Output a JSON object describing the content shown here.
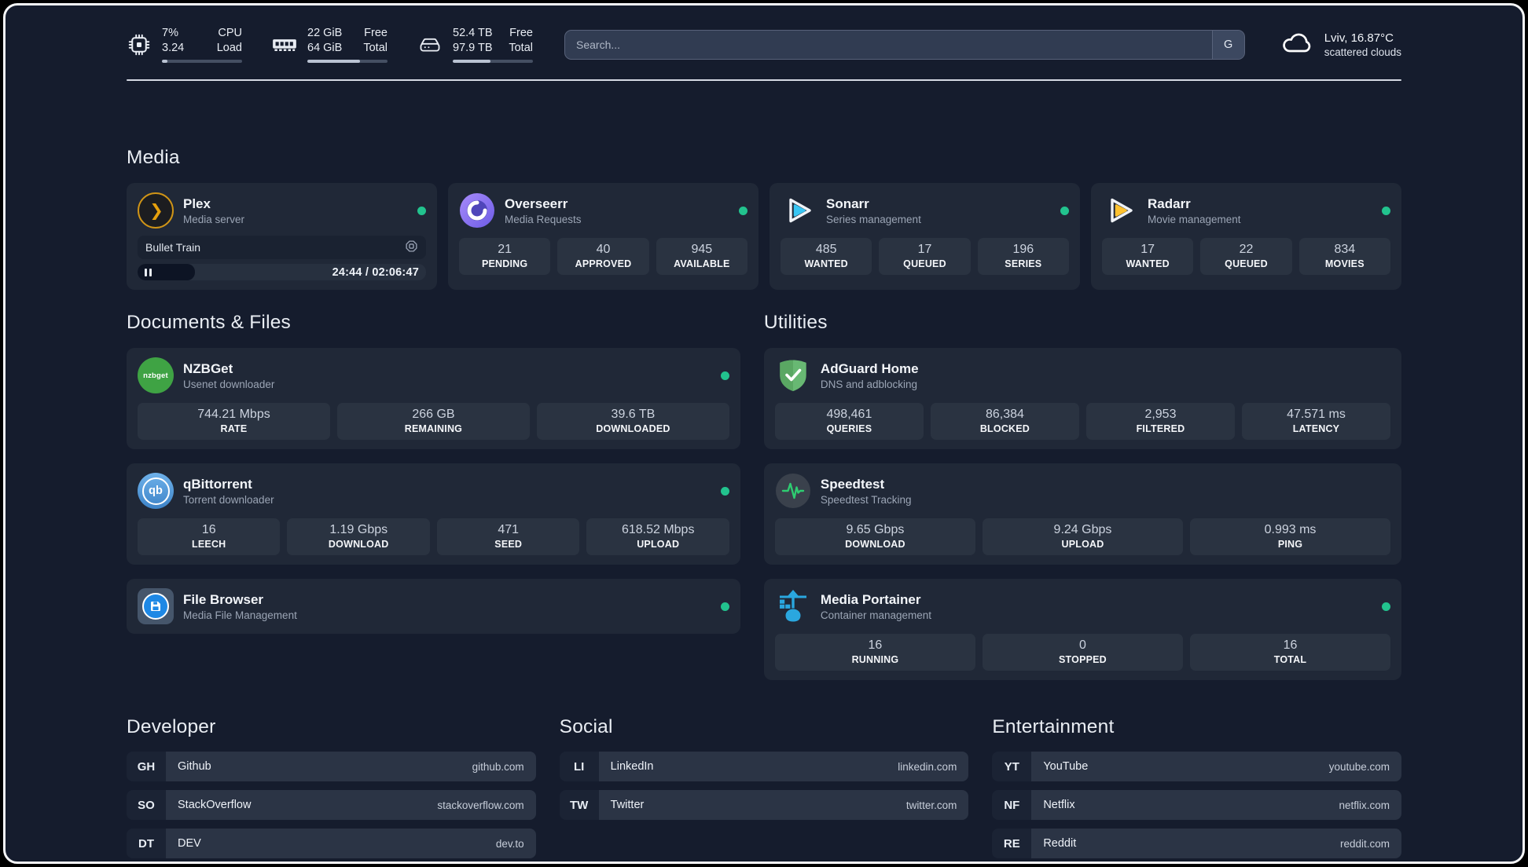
{
  "topbar": {
    "cpu": {
      "icon": "cpu-chip-icon",
      "value1": "7%",
      "value2": "3.24",
      "label1": "CPU",
      "label2": "Load",
      "progress_percent": 7
    },
    "memory": {
      "icon": "ram-icon",
      "value1": "22 GiB",
      "value2": "64 GiB",
      "label1": "Free",
      "label2": "Total",
      "progress_percent": 66
    },
    "disk": {
      "icon": "disk-icon",
      "value1": "52.4 TB",
      "value2": "97.9 TB",
      "label1": "Free",
      "label2": "Total",
      "progress_percent": 47
    },
    "search": {
      "placeholder": "Search...",
      "provider_label": "G"
    },
    "weather": {
      "icon": "cloud-icon",
      "location": "Lviv, 16.87°C",
      "condition": "scattered clouds"
    }
  },
  "media": {
    "title": "Media",
    "apps": {
      "plex": {
        "name": "Plex",
        "description": "Media server",
        "status": "online",
        "now_playing": {
          "title": "Bullet Train",
          "time": "24:44 / 02:06:47",
          "progress_percent": 20
        }
      },
      "overseerr": {
        "name": "Overseerr",
        "description": "Media Requests",
        "status": "online",
        "stats": [
          {
            "value": "21",
            "label": "PENDING"
          },
          {
            "value": "40",
            "label": "APPROVED"
          },
          {
            "value": "945",
            "label": "AVAILABLE"
          }
        ]
      },
      "sonarr": {
        "name": "Sonarr",
        "description": "Series management",
        "status": "online",
        "stats": [
          {
            "value": "485",
            "label": "WANTED"
          },
          {
            "value": "17",
            "label": "QUEUED"
          },
          {
            "value": "196",
            "label": "SERIES"
          }
        ]
      },
      "radarr": {
        "name": "Radarr",
        "description": "Movie management",
        "status": "online",
        "stats": [
          {
            "value": "17",
            "label": "WANTED"
          },
          {
            "value": "22",
            "label": "QUEUED"
          },
          {
            "value": "834",
            "label": "MOVIES"
          }
        ]
      }
    }
  },
  "documents": {
    "title": "Documents & Files",
    "apps": {
      "nzbget": {
        "name": "NZBGet",
        "description": "Usenet downloader",
        "status": "online",
        "icon_text": "nzbget",
        "stats": [
          {
            "value": "744.21 Mbps",
            "label": "RATE"
          },
          {
            "value": "266 GB",
            "label": "REMAINING"
          },
          {
            "value": "39.6 TB",
            "label": "DOWNLOADED"
          }
        ]
      },
      "qbittorrent": {
        "name": "qBittorrent",
        "description": "Torrent downloader",
        "status": "online",
        "icon_text": "qb",
        "stats": [
          {
            "value": "16",
            "label": "LEECH"
          },
          {
            "value": "1.19 Gbps",
            "label": "DOWNLOAD"
          },
          {
            "value": "471",
            "label": "SEED"
          },
          {
            "value": "618.52 Mbps",
            "label": "UPLOAD"
          }
        ]
      },
      "filebrowser": {
        "name": "File Browser",
        "description": "Media File Management",
        "status": "online"
      }
    }
  },
  "utilities": {
    "title": "Utilities",
    "apps": {
      "adguard": {
        "name": "AdGuard Home",
        "description": "DNS and adblocking",
        "stats": [
          {
            "value": "498,461",
            "label": "QUERIES"
          },
          {
            "value": "86,384",
            "label": "BLOCKED"
          },
          {
            "value": "2,953",
            "label": "FILTERED"
          },
          {
            "value": "47.571 ms",
            "label": "LATENCY"
          }
        ]
      },
      "speedtest": {
        "name": "Speedtest",
        "description": "Speedtest Tracking",
        "stats": [
          {
            "value": "9.65 Gbps",
            "label": "DOWNLOAD"
          },
          {
            "value": "9.24 Gbps",
            "label": "UPLOAD"
          },
          {
            "value": "0.993 ms",
            "label": "PING"
          }
        ]
      },
      "portainer": {
        "name": "Media Portainer",
        "description": "Container management",
        "status": "online",
        "stats": [
          {
            "value": "16",
            "label": "RUNNING"
          },
          {
            "value": "0",
            "label": "STOPPED"
          },
          {
            "value": "16",
            "label": "TOTAL"
          }
        ]
      }
    }
  },
  "bookmarks": {
    "developer": {
      "title": "Developer",
      "items": [
        {
          "abbr": "GH",
          "name": "Github",
          "url": "github.com"
        },
        {
          "abbr": "SO",
          "name": "StackOverflow",
          "url": "stackoverflow.com"
        },
        {
          "abbr": "DT",
          "name": "DEV",
          "url": "dev.to"
        }
      ]
    },
    "social": {
      "title": "Social",
      "items": [
        {
          "abbr": "LI",
          "name": "LinkedIn",
          "url": "linkedin.com"
        },
        {
          "abbr": "TW",
          "name": "Twitter",
          "url": "twitter.com"
        }
      ]
    },
    "entertainment": {
      "title": "Entertainment",
      "items": [
        {
          "abbr": "YT",
          "name": "YouTube",
          "url": "youtube.com"
        },
        {
          "abbr": "NF",
          "name": "Netflix",
          "url": "netflix.com"
        },
        {
          "abbr": "RE",
          "name": "Reddit",
          "url": "reddit.com"
        }
      ]
    }
  },
  "colors": {
    "background": "#151c2d",
    "card": "#202837",
    "status_online": "#22c38e",
    "accent_plex": "#e5a00d",
    "accent_sonarr": "#38c6f4",
    "accent_radarr": "#ffc230",
    "accent_adguard": "#68b873",
    "accent_portainer": "#2aa7df",
    "accent_speedtest": "#2ecc71"
  }
}
